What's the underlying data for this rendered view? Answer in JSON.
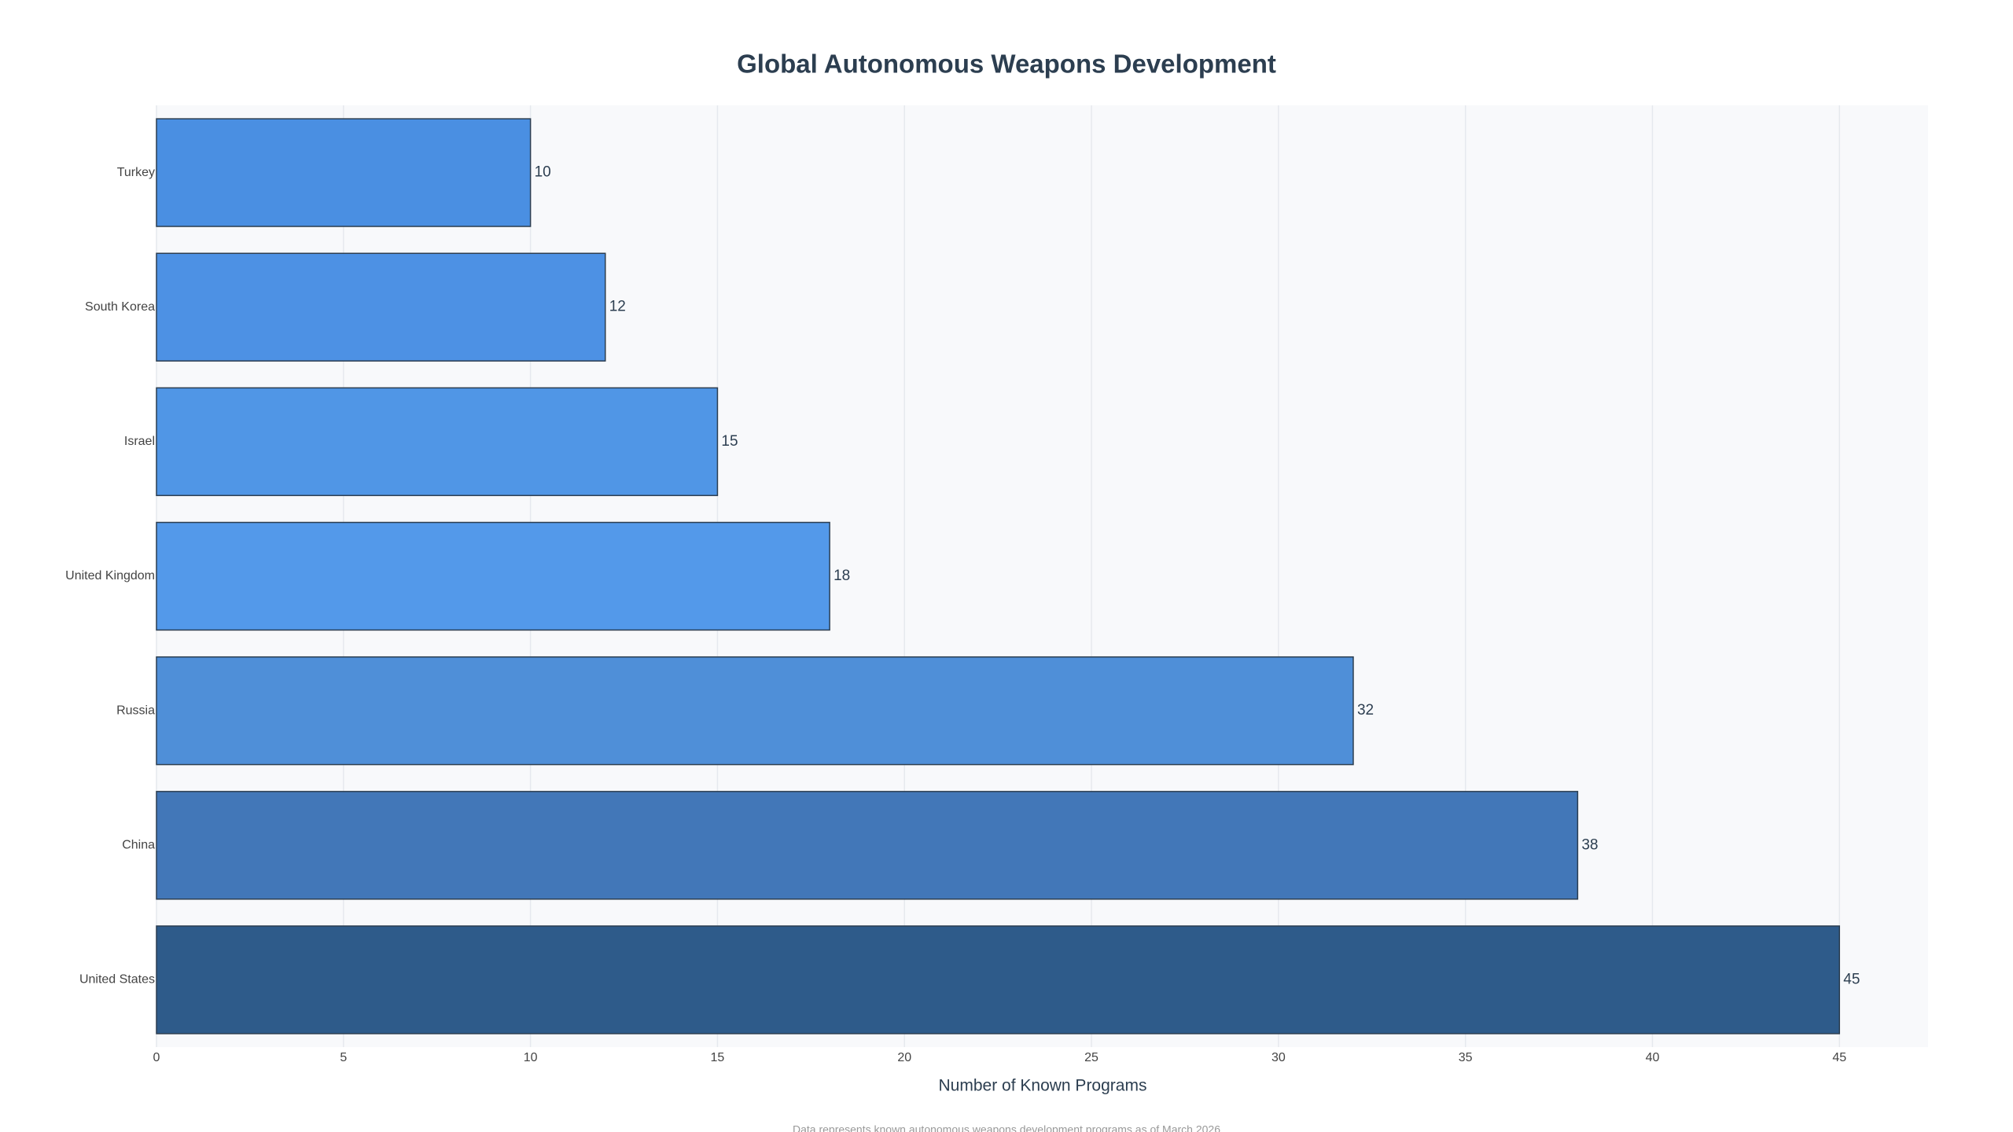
{
  "chart_data": {
    "type": "bar",
    "orientation": "horizontal",
    "title": "Global Autonomous Weapons Development",
    "x_label": "Number of Known Programs",
    "footnote": "Data represents known autonomous weapons development programs as of March 2026",
    "categories": [
      "Turkey",
      "South Korea",
      "Israel",
      "United Kingdom",
      "Russia",
      "China",
      "United States"
    ],
    "values": [
      10,
      12,
      15,
      18,
      32,
      38,
      45
    ],
    "colors": [
      "#4a8fe2",
      "#4d91e4",
      "#5096e6",
      "#5399ea",
      "#4f8fd8",
      "#4277b8",
      "#2e5b8a"
    ],
    "xlim": [
      0,
      47.37
    ],
    "xticks": [
      0,
      5,
      10,
      15,
      20,
      25,
      30,
      35,
      40,
      45
    ],
    "grid": true
  }
}
